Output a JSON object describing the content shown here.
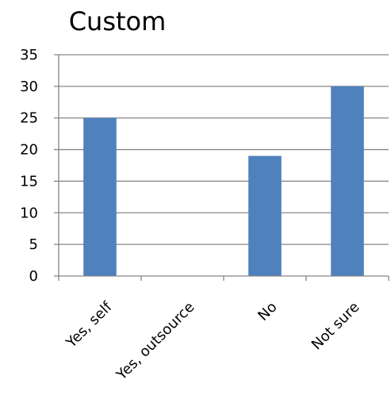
{
  "chart_data": {
    "type": "bar",
    "title": "Custom",
    "categories": [
      "Yes, self",
      "Yes, outsource",
      "No",
      "Not sure"
    ],
    "values": [
      25,
      0,
      19,
      30
    ],
    "xlabel": "",
    "ylabel": "",
    "ylim": [
      0,
      35
    ],
    "yticks": [
      "0",
      "5",
      "10",
      "15",
      "20",
      "25",
      "30",
      "35"
    ],
    "grid": true,
    "legend": "none",
    "bar_color": "#4f81bd",
    "grid_color": "#868686",
    "axis_color": "#868686"
  }
}
